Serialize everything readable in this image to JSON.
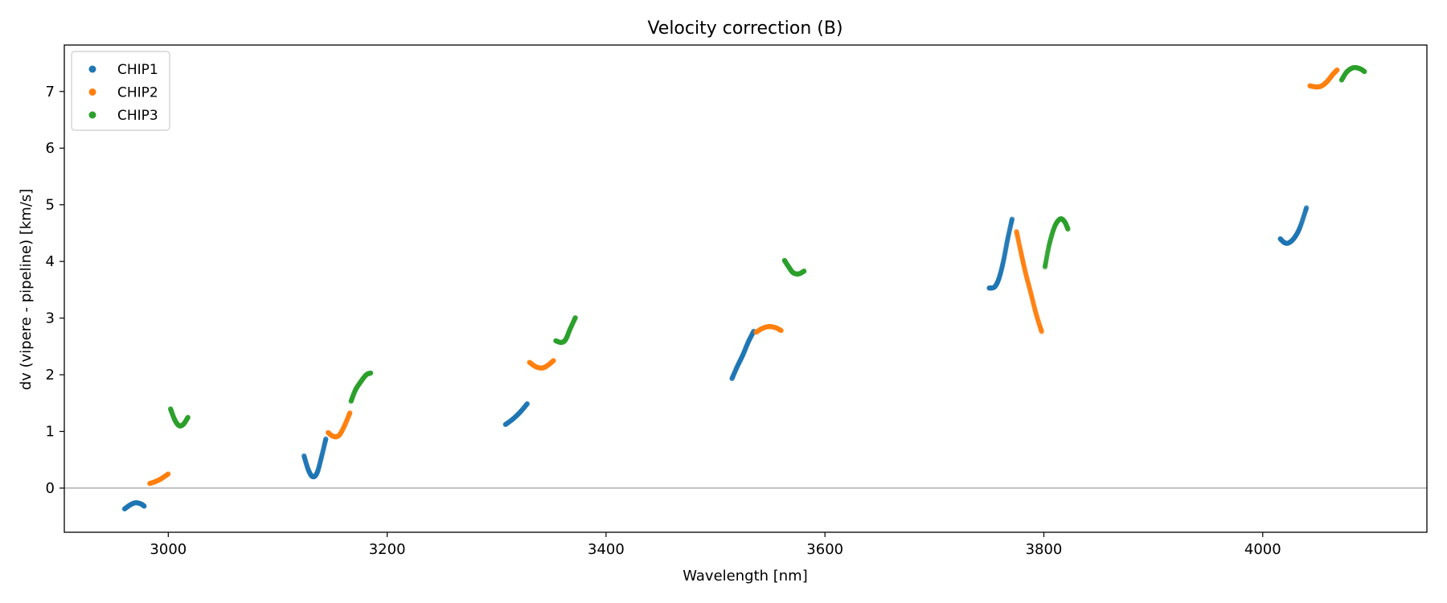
{
  "chart_data": {
    "type": "scatter",
    "title": "Velocity correction (B)",
    "xlabel": "Wavelength [nm]",
    "ylabel": "dv (vipere - pipeline) [km/s]",
    "xlim": [
      2905,
      4150
    ],
    "ylim": [
      -0.78,
      7.82
    ],
    "xticks": [
      3000,
      3200,
      3400,
      3600,
      3800,
      4000
    ],
    "yticks": [
      0,
      1,
      2,
      3,
      4,
      5,
      6,
      7
    ],
    "xtick_labels": [
      "3000",
      "3200",
      "3400",
      "3600",
      "3800",
      "4000"
    ],
    "ytick_labels": [
      "0",
      "1",
      "2",
      "3",
      "4",
      "5",
      "6",
      "7"
    ],
    "hline": 0,
    "legend_position": "top-left",
    "series": [
      {
        "name": "CHIP1",
        "color": "#1f77b4",
        "segments": [
          [
            [
              2960,
              -0.37
            ],
            [
              2965,
              -0.3
            ],
            [
              2970,
              -0.26
            ],
            [
              2975,
              -0.28
            ],
            [
              2978,
              -0.32
            ]
          ],
          [
            [
              3124,
              0.57
            ],
            [
              3128,
              0.32
            ],
            [
              3132,
              0.2
            ],
            [
              3136,
              0.27
            ],
            [
              3140,
              0.55
            ],
            [
              3144,
              0.87
            ]
          ],
          [
            [
              3308,
              1.12
            ],
            [
              3315,
              1.22
            ],
            [
              3322,
              1.35
            ],
            [
              3328,
              1.49
            ]
          ],
          [
            [
              3515,
              1.93
            ],
            [
              3520,
              2.15
            ],
            [
              3525,
              2.35
            ],
            [
              3530,
              2.58
            ],
            [
              3535,
              2.77
            ]
          ],
          [
            [
              3750,
              3.53
            ],
            [
              3755,
              3.55
            ],
            [
              3759,
              3.7
            ],
            [
              3763,
              4.0
            ],
            [
              3767,
              4.4
            ],
            [
              3771,
              4.75
            ]
          ],
          [
            [
              4016,
              4.4
            ],
            [
              4020,
              4.33
            ],
            [
              4024,
              4.33
            ],
            [
              4029,
              4.42
            ],
            [
              4034,
              4.6
            ],
            [
              4040,
              4.95
            ]
          ]
        ]
      },
      {
        "name": "CHIP2",
        "color": "#ff7f0e",
        "segments": [
          [
            [
              2983,
              0.08
            ],
            [
              2989,
              0.12
            ],
            [
              2994,
              0.17
            ],
            [
              3000,
              0.25
            ]
          ],
          [
            [
              3146,
              0.98
            ],
            [
              3151,
              0.91
            ],
            [
              3156,
              0.93
            ],
            [
              3161,
              1.1
            ],
            [
              3166,
              1.33
            ]
          ],
          [
            [
              3330,
              2.22
            ],
            [
              3336,
              2.14
            ],
            [
              3342,
              2.12
            ],
            [
              3347,
              2.17
            ],
            [
              3352,
              2.25
            ]
          ],
          [
            [
              3537,
              2.75
            ],
            [
              3543,
              2.82
            ],
            [
              3549,
              2.85
            ],
            [
              3555,
              2.83
            ],
            [
              3560,
              2.78
            ]
          ],
          [
            [
              3775,
              4.53
            ],
            [
              3779,
              4.17
            ],
            [
              3783,
              3.82
            ],
            [
              3788,
              3.45
            ],
            [
              3793,
              3.07
            ],
            [
              3798,
              2.76
            ]
          ],
          [
            [
              4043,
              7.1
            ],
            [
              4049,
              7.08
            ],
            [
              4054,
              7.1
            ],
            [
              4059,
              7.18
            ],
            [
              4064,
              7.3
            ],
            [
              4068,
              7.38
            ]
          ]
        ]
      },
      {
        "name": "CHIP3",
        "color": "#2ca02c",
        "segments": [
          [
            [
              3002,
              1.4
            ],
            [
              3006,
              1.2
            ],
            [
              3010,
              1.1
            ],
            [
              3014,
              1.13
            ],
            [
              3018,
              1.25
            ]
          ],
          [
            [
              3167,
              1.53
            ],
            [
              3171,
              1.73
            ],
            [
              3176,
              1.88
            ],
            [
              3181,
              2.0
            ],
            [
              3185,
              2.03
            ]
          ],
          [
            [
              3354,
              2.6
            ],
            [
              3359,
              2.57
            ],
            [
              3363,
              2.62
            ],
            [
              3367,
              2.8
            ],
            [
              3372,
              3.01
            ]
          ],
          [
            [
              3563,
              4.02
            ],
            [
              3567,
              3.9
            ],
            [
              3571,
              3.8
            ],
            [
              3576,
              3.78
            ],
            [
              3581,
              3.83
            ]
          ],
          [
            [
              3801,
              3.9
            ],
            [
              3805,
              4.3
            ],
            [
              3810,
              4.62
            ],
            [
              3815,
              4.75
            ],
            [
              3819,
              4.7
            ],
            [
              3822,
              4.57
            ]
          ],
          [
            [
              4072,
              7.2
            ],
            [
              4077,
              7.35
            ],
            [
              4083,
              7.42
            ],
            [
              4089,
              7.4
            ],
            [
              4093,
              7.35
            ]
          ]
        ]
      }
    ]
  }
}
